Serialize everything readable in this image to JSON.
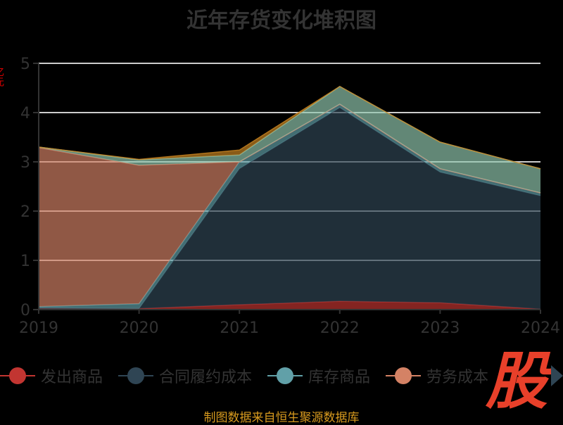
{
  "title": "近年存货变化堆积图",
  "y_axis_label": "亿元",
  "source": "制图数据来自恒生聚源数据库",
  "logo_text": "股",
  "legend": [
    {
      "name": "发出商品",
      "color": "#c23531"
    },
    {
      "name": "合同履约成本",
      "color": "#2f4554"
    },
    {
      "name": "库存商品",
      "color": "#61a0a8"
    },
    {
      "name": "劳务成本",
      "color": "#d48265"
    }
  ],
  "chart_data": {
    "type": "area",
    "stacked": true,
    "title": "近年存货变化堆积图",
    "ylabel": "亿元",
    "categories": [
      "2019",
      "2020",
      "2021",
      "2022",
      "2023",
      "2024"
    ],
    "ylim": [
      0,
      5
    ],
    "yticks": [
      0,
      1,
      2,
      3,
      4,
      5
    ],
    "grid": true,
    "legend_position": "bottom",
    "series": [
      {
        "name": "发出商品",
        "color": "#c23531",
        "values": [
          0.02,
          0.02,
          0.1,
          0.17,
          0.14,
          0.01
        ]
      },
      {
        "name": "合同履约成本",
        "color": "#2f4554",
        "values": [
          0.01,
          0.0,
          2.76,
          3.93,
          2.65,
          2.3
        ]
      },
      {
        "name": "库存商品",
        "color": "#61a0a8",
        "values": [
          0.03,
          0.1,
          0.14,
          0.07,
          0.07,
          0.06
        ]
      },
      {
        "name": "劳务成本",
        "color": "#d48265",
        "values": [
          3.23,
          2.81,
          0.0,
          0.0,
          0.0,
          0.0
        ]
      },
      {
        "color": "#91c7ae",
        "values": [
          0.01,
          0.11,
          0.14,
          0.36,
          0.54,
          0.49
        ]
      },
      {
        "color": "#ca8622",
        "values": [
          0.0,
          0.01,
          0.1,
          0.0,
          0.0,
          0.0
        ]
      }
    ]
  }
}
